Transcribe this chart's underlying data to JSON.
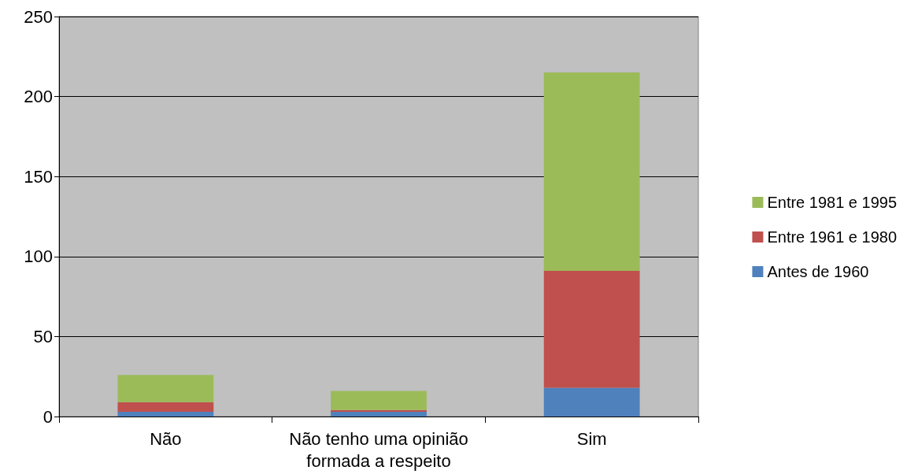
{
  "chart_data": {
    "type": "bar",
    "stacked": true,
    "categories": [
      "Não",
      "Não tenho uma opinião\nformada a respeito",
      "Sim"
    ],
    "series": [
      {
        "name": "Antes de 1960",
        "color": "#4f81bd",
        "values": [
          3,
          3,
          18
        ]
      },
      {
        "name": "Entre 1961 e 1980",
        "color": "#c0504d",
        "values": [
          6,
          1,
          73
        ]
      },
      {
        "name": "Entre 1981 e 1995",
        "color": "#9bbb59",
        "values": [
          17,
          12,
          124
        ]
      }
    ],
    "ylim": [
      0,
      250
    ],
    "yticks": [
      0,
      50,
      100,
      150,
      200,
      250
    ],
    "grid": "y",
    "legend": "right"
  }
}
